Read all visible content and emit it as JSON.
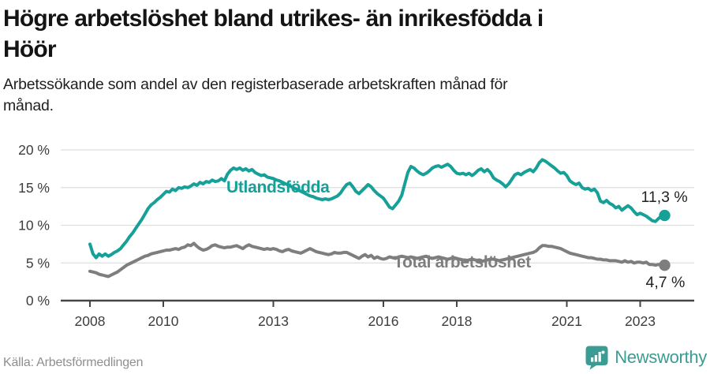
{
  "header": {
    "title_lines": [
      "Högre arbetslöshet bland utrikes- än inrikesfödda i",
      "Höör"
    ],
    "subtitle_lines": [
      "Arbetssökande som andel av den registerbaserade arbetskraften månad för",
      "månad."
    ]
  },
  "footer": {
    "source": "Källa: Arbetsförmedlingen",
    "brand": "Newsworthy",
    "brand_icon": "newsworthy-barchart-bubble-icon"
  },
  "colors": {
    "accent_teal": "#16a098",
    "series_gray": "#7e7e7e",
    "grid": "#dedede",
    "axis": "#454545",
    "tick_label": "#3d3d3d",
    "annotation": "#222222",
    "logo_teal": "#3b9c94"
  },
  "chart_data": {
    "type": "line",
    "title": "Högre arbetslöshet bland utrikes- än inrikesfödda i Höör",
    "subtitle": "Arbetssökande som andel av den registerbaserade arbetskraften månad för månad.",
    "x_unit": "month",
    "x_start": "2008-01",
    "x_end": "2023-09",
    "xlim": [
      2008.0,
      2023.75
    ],
    "ylim": [
      0,
      20
    ],
    "grid": "horizontal",
    "legend_position": "inline",
    "ytick_values": [
      0,
      5,
      10,
      15,
      20
    ],
    "ytick_labels": [
      "0 %",
      "5 %",
      "10 %",
      "15 %",
      "20 %"
    ],
    "xtick_values": [
      2008,
      2010,
      2013,
      2016,
      2018,
      2021,
      2023
    ],
    "xtick_labels": [
      "2008",
      "2010",
      "2013",
      "2016",
      "2018",
      "2021",
      "2023"
    ],
    "series": [
      {
        "name": "Utlandsfödda",
        "color": "#16a098",
        "end_value": 11.3,
        "end_label": "11,3 %",
        "values": [
          7.5,
          6.2,
          5.7,
          6.2,
          5.9,
          6.2,
          5.9,
          6.1,
          6.4,
          6.6,
          6.9,
          7.4,
          7.9,
          8.5,
          9.0,
          9.6,
          10.2,
          10.8,
          11.5,
          12.2,
          12.7,
          13.0,
          13.4,
          13.7,
          14.1,
          14.5,
          14.4,
          14.8,
          14.6,
          15.0,
          14.9,
          15.1,
          15.0,
          15.2,
          15.5,
          15.3,
          15.7,
          15.5,
          15.8,
          15.7,
          16.0,
          15.8,
          15.9,
          16.2,
          15.9,
          16.8,
          17.3,
          17.6,
          17.4,
          17.6,
          17.3,
          17.5,
          17.2,
          17.4,
          17.0,
          16.8,
          16.6,
          16.7,
          16.4,
          16.3,
          16.2,
          16.0,
          15.9,
          15.7,
          15.5,
          15.3,
          15.1,
          14.9,
          14.7,
          14.5,
          14.3,
          14.1,
          13.9,
          13.8,
          13.6,
          13.5,
          13.4,
          13.5,
          13.4,
          13.5,
          13.7,
          13.9,
          14.3,
          14.9,
          15.4,
          15.6,
          15.1,
          14.5,
          14.2,
          14.6,
          15.0,
          15.4,
          15.1,
          14.6,
          14.2,
          13.9,
          13.6,
          13.0,
          12.4,
          12.2,
          12.7,
          13.2,
          14.0,
          15.5,
          17.0,
          17.8,
          17.6,
          17.2,
          16.9,
          16.7,
          16.9,
          17.2,
          17.6,
          17.8,
          17.9,
          17.7,
          17.9,
          18.1,
          17.8,
          17.3,
          16.9,
          16.8,
          16.9,
          16.7,
          16.9,
          16.6,
          16.9,
          17.3,
          17.5,
          17.1,
          17.4,
          17.0,
          16.3,
          16.0,
          15.8,
          15.5,
          15.1,
          15.5,
          16.1,
          16.7,
          16.9,
          16.7,
          17.0,
          17.2,
          17.4,
          17.1,
          17.6,
          18.3,
          18.7,
          18.5,
          18.2,
          17.9,
          17.6,
          17.2,
          16.9,
          17.0,
          16.6,
          15.9,
          15.6,
          15.4,
          15.6,
          15.0,
          14.8,
          14.9,
          14.6,
          14.8,
          14.3,
          13.2,
          13.0,
          13.3,
          12.9,
          12.7,
          12.3,
          12.5,
          12.0,
          12.3,
          12.6,
          12.3,
          11.8,
          11.4,
          11.6,
          11.4,
          11.2,
          10.9,
          10.6,
          10.5,
          10.9,
          11.2,
          11.3
        ]
      },
      {
        "name": "Total arbetslöshet",
        "color": "#7e7e7e",
        "end_value": 4.7,
        "end_label": "4,7 %",
        "values": [
          3.9,
          3.8,
          3.7,
          3.5,
          3.4,
          3.3,
          3.2,
          3.4,
          3.6,
          3.8,
          4.1,
          4.4,
          4.7,
          4.9,
          5.1,
          5.3,
          5.5,
          5.7,
          5.9,
          6.0,
          6.2,
          6.3,
          6.4,
          6.5,
          6.6,
          6.7,
          6.7,
          6.8,
          6.9,
          6.8,
          7.0,
          7.1,
          7.4,
          7.3,
          7.6,
          7.2,
          6.9,
          6.7,
          6.8,
          7.0,
          7.3,
          7.4,
          7.2,
          7.1,
          7.0,
          7.1,
          7.1,
          7.2,
          7.3,
          7.1,
          6.9,
          7.2,
          7.4,
          7.2,
          7.1,
          7.0,
          6.9,
          6.8,
          6.9,
          6.8,
          6.9,
          6.8,
          6.6,
          6.5,
          6.7,
          6.8,
          6.6,
          6.5,
          6.4,
          6.3,
          6.5,
          6.7,
          6.9,
          6.7,
          6.5,
          6.4,
          6.3,
          6.2,
          6.1,
          6.2,
          6.4,
          6.3,
          6.3,
          6.4,
          6.4,
          6.2,
          6.0,
          5.8,
          5.6,
          5.9,
          6.1,
          5.8,
          6.0,
          5.6,
          5.8,
          5.6,
          5.5,
          5.6,
          5.8,
          5.7,
          5.6,
          5.8,
          5.9,
          5.8,
          5.7,
          5.8,
          5.7,
          5.6,
          5.7,
          5.8,
          5.9,
          5.7,
          5.6,
          5.7,
          5.8,
          5.7,
          5.6,
          5.5,
          5.6,
          5.7,
          5.6,
          5.5,
          5.4,
          5.3,
          5.4,
          5.5,
          5.4,
          5.3,
          5.2,
          5.3,
          5.4,
          5.5,
          5.5,
          5.4,
          5.3,
          5.4,
          5.5,
          5.6,
          5.7,
          5.8,
          5.9,
          6.0,
          6.1,
          6.2,
          6.3,
          6.4,
          6.6,
          7.0,
          7.3,
          7.3,
          7.2,
          7.2,
          7.1,
          7.0,
          6.9,
          6.7,
          6.5,
          6.3,
          6.2,
          6.1,
          6.0,
          5.9,
          5.8,
          5.7,
          5.7,
          5.6,
          5.5,
          5.5,
          5.4,
          5.4,
          5.3,
          5.3,
          5.3,
          5.2,
          5.1,
          5.3,
          5.1,
          5.2,
          5.0,
          5.1,
          5.1,
          5.0,
          5.1,
          4.8,
          4.8,
          4.7,
          4.8,
          4.8,
          4.7
        ]
      }
    ]
  }
}
